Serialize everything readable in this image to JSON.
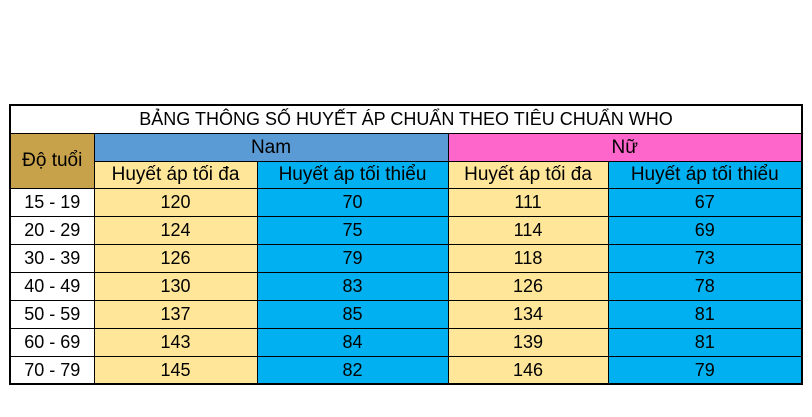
{
  "table": {
    "title": "BẢNG THÔNG SỐ HUYẾT ÁP CHUẨN THEO TIÊU CHUẨN WHO",
    "age_header": "Độ tuổi",
    "groups": [
      {
        "label": "Nam",
        "color": "#5b9bd5"
      },
      {
        "label": "Nữ",
        "color": "#ff66cc"
      }
    ],
    "sub_headers": [
      "Huyết áp tối đa",
      "Huyết áp tối thiểu",
      "Huyết áp tối đa",
      "Huyết áp tối thiểu"
    ],
    "colors": {
      "age_header": "#c8a24a",
      "max_column": "#ffe699",
      "min_column": "#00b0f0"
    },
    "rows": [
      {
        "age": "15 - 19",
        "values": [
          "120",
          "70",
          "111",
          "67"
        ]
      },
      {
        "age": "20 - 29",
        "values": [
          "124",
          "75",
          "114",
          "69"
        ]
      },
      {
        "age": "30 - 39",
        "values": [
          "126",
          "79",
          "118",
          "73"
        ]
      },
      {
        "age": "40 - 49",
        "values": [
          "130",
          "83",
          "126",
          "78"
        ]
      },
      {
        "age": "50 - 59",
        "values": [
          "137",
          "85",
          "134",
          "81"
        ]
      },
      {
        "age": "60 - 69",
        "values": [
          "143",
          "84",
          "139",
          "81"
        ]
      },
      {
        "age": "70 - 79",
        "values": [
          "145",
          "82",
          "146",
          "79"
        ]
      }
    ]
  }
}
